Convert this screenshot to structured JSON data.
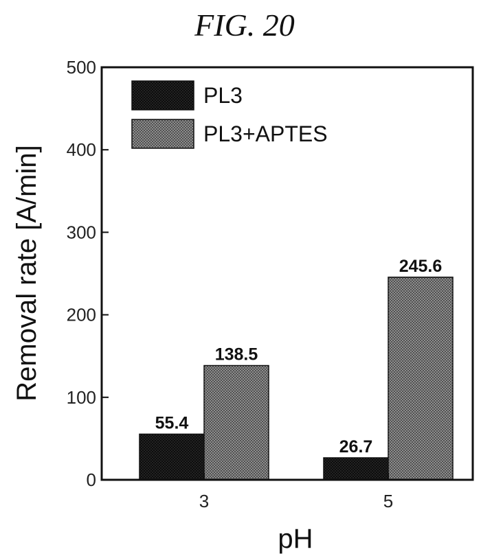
{
  "figure_title": "FIG. 20",
  "chart_data": {
    "type": "bar",
    "categories": [
      "3",
      "5"
    ],
    "series": [
      {
        "name": "PL3",
        "values": [
          55.4,
          26.7
        ],
        "color": "#1c1c1c",
        "pattern": "dark-crosshatch"
      },
      {
        "name": "PL3+APTES",
        "values": [
          138.5,
          245.6
        ],
        "color": "#8a8a8a",
        "pattern": "light-crosshatch"
      }
    ],
    "data_labels": [
      [
        "55.4",
        "26.7"
      ],
      [
        "138.5",
        "245.6"
      ]
    ],
    "xlabel": "pH",
    "ylabel": "Removal rate [A/min]",
    "ylim": [
      0,
      500
    ],
    "yticks": [
      0,
      100,
      200,
      300,
      400,
      500
    ],
    "grid": false,
    "legend_position": "top-left"
  }
}
